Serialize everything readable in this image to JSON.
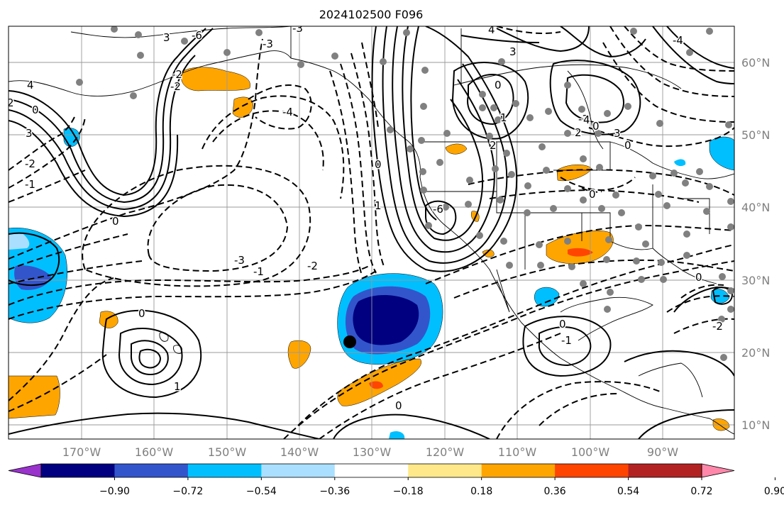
{
  "title": "2024102500 F096",
  "lon_labels": [
    "170°W",
    "160°W",
    "150°W",
    "140°W",
    "130°W",
    "120°W",
    "110°W",
    "100°W",
    "90°W"
  ],
  "lat_labels": [
    "60°N",
    "50°N",
    "40°N",
    "30°N",
    "20°N",
    "10°N"
  ],
  "colorbar": {
    "ticks": [
      "−0.90",
      "−0.72",
      "−0.54",
      "−0.36",
      "−0.18",
      "0.18",
      "0.36",
      "0.54",
      "0.72",
      "0.90"
    ],
    "colors": [
      "#9933cc",
      "#000080",
      "#3355cc",
      "#00bfff",
      "#aadfff",
      "#ffffff",
      "#ffe88a",
      "#ffa500",
      "#ff4500",
      "#b22222",
      "#ff88aa"
    ]
  },
  "contour_labels": [
    {
      "text": "4"
    },
    {
      "text": "3"
    },
    {
      "text": "2"
    },
    {
      "text": "0"
    },
    {
      "text": "-1"
    },
    {
      "text": "3"
    },
    {
      "text": "-6"
    },
    {
      "text": "-3"
    },
    {
      "text": "-2"
    },
    {
      "text": "-2"
    },
    {
      "text": "0"
    },
    {
      "text": "-3"
    },
    {
      "text": "-4"
    },
    {
      "text": "-3"
    },
    {
      "text": "0"
    },
    {
      "text": "1"
    },
    {
      "text": "-6"
    },
    {
      "text": "4"
    },
    {
      "text": "3"
    },
    {
      "text": "2"
    },
    {
      "text": "0"
    },
    {
      "text": "1"
    },
    {
      "text": "-3"
    },
    {
      "text": "0"
    },
    {
      "text": "4"
    },
    {
      "text": "3"
    },
    {
      "text": "2"
    },
    {
      "text": "0"
    },
    {
      "text": "-4"
    },
    {
      "text": "-2"
    },
    {
      "text": "0"
    },
    {
      "text": "-2"
    },
    {
      "text": "-1"
    },
    {
      "text": "0"
    },
    {
      "text": "1"
    },
    {
      "text": "0"
    },
    {
      "text": "-1"
    },
    {
      "text": "0"
    },
    {
      "text": "-2"
    },
    {
      "text": "0"
    }
  ]
}
